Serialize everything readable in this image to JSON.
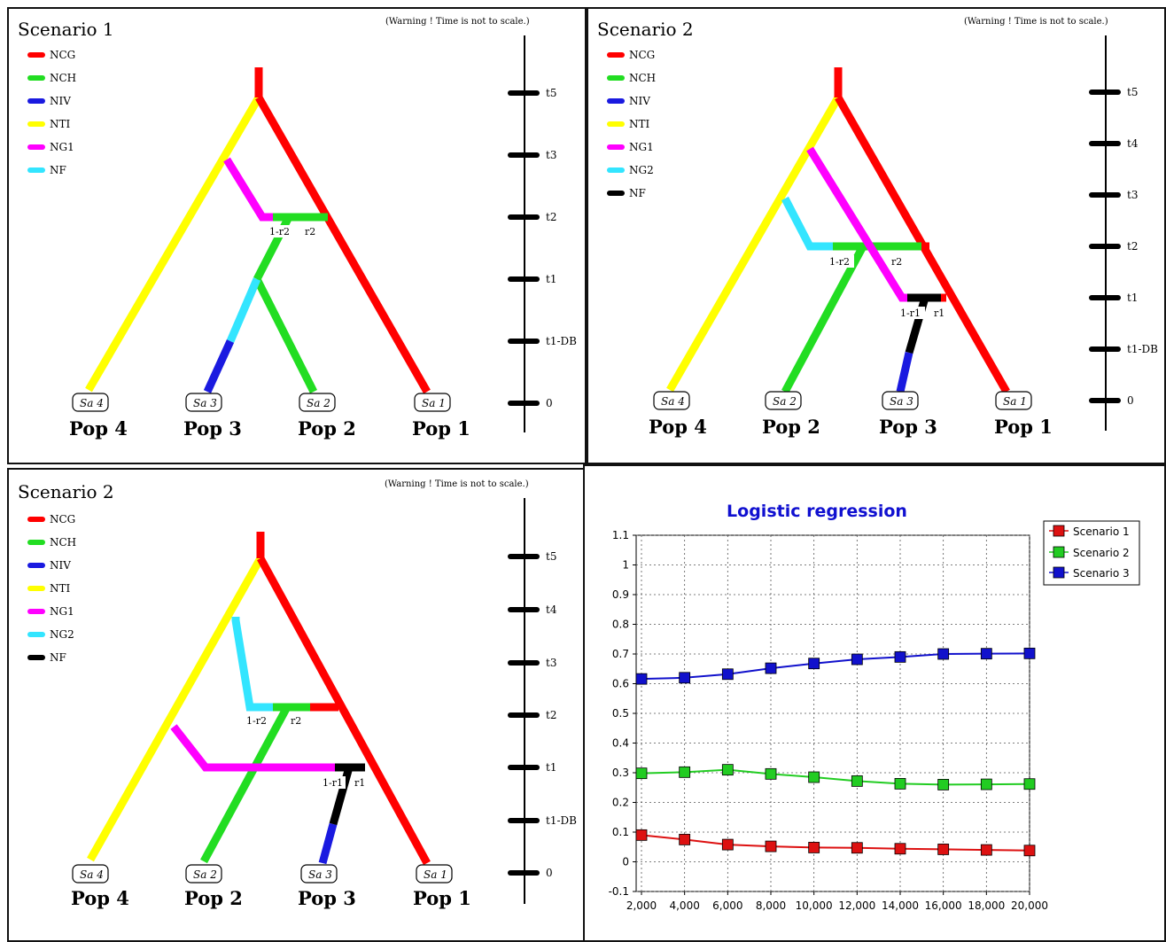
{
  "colors": {
    "NCG": "#ff0000",
    "NCH": "#22dd22",
    "NIV": "#1a1ae0",
    "NTI": "#ffff00",
    "NG1": "#ff00ff",
    "NG2": "#33e5ff",
    "NF": "#000000",
    "scenario1": "#dd1111",
    "scenario2": "#22cc22",
    "scenario3": "#1111cc"
  },
  "warning_text": "(Warning ! Time is not to scale.)",
  "panels": {
    "p1": {
      "title": "Scenario 1",
      "legend": [
        "NCG",
        "NCH",
        "NIV",
        "NTI",
        "NG1",
        "NF"
      ],
      "time_labels": [
        "t5",
        "t3",
        "t2",
        "t1",
        "t1-DB",
        "0"
      ],
      "samples": [
        "Sa 4",
        "Sa 3",
        "Sa 2",
        "Sa 1"
      ],
      "pops": [
        "Pop 4",
        "Pop 3",
        "Pop 2",
        "Pop 1"
      ],
      "admix_labels": [
        "1-r2",
        "r2"
      ]
    },
    "p2": {
      "title": "Scenario 2",
      "legend": [
        "NCG",
        "NCH",
        "NIV",
        "NTI",
        "NG1",
        "NG2",
        "NF"
      ],
      "time_labels": [
        "t5",
        "t4",
        "t3",
        "t2",
        "t1",
        "t1-DB",
        "0"
      ],
      "samples": [
        "Sa 4",
        "Sa 2",
        "Sa 3",
        "Sa 1"
      ],
      "pops": [
        "Pop 4",
        "Pop 2",
        "Pop 3",
        "Pop 1"
      ],
      "admix_labels": [
        "1-r2",
        "r2",
        "1-r1",
        "r1"
      ]
    },
    "p3": {
      "title": "Scenario 2",
      "legend": [
        "NCG",
        "NCH",
        "NIV",
        "NTI",
        "NG1",
        "NG2",
        "NF"
      ],
      "time_labels": [
        "t5",
        "t4",
        "t3",
        "t2",
        "t1",
        "t1-DB",
        "0"
      ],
      "samples": [
        "Sa 4",
        "Sa 2",
        "Sa 3",
        "Sa 1"
      ],
      "pops": [
        "Pop 4",
        "Pop 2",
        "Pop 3",
        "Pop 1"
      ],
      "admix_labels": [
        "1-r2",
        "r2",
        "1-r1",
        "r1"
      ]
    }
  },
  "chart_data": {
    "type": "line",
    "title": "Logistic regression",
    "x": [
      2000,
      4000,
      6000,
      8000,
      10000,
      12000,
      14000,
      16000,
      18000,
      20000
    ],
    "x_tick_labels": [
      "2,000",
      "4,000",
      "6,000",
      "8,000",
      "10,000",
      "12,000",
      "14,000",
      "16,000",
      "18,000",
      "20,000"
    ],
    "y_tick_labels": [
      "1.1",
      "1",
      "0.9",
      "0.8",
      "0.7",
      "0.6",
      "0.5",
      "0.4",
      "0.3",
      "0.2",
      "0.1",
      "0",
      "-0.1"
    ],
    "ylim": [
      -0.1,
      1.1
    ],
    "xlim": [
      2000,
      20000
    ],
    "grid": true,
    "legend_position": "top-right",
    "series": [
      {
        "name": "Scenario 1",
        "values": [
          0.09,
          0.075,
          0.058,
          0.052,
          0.048,
          0.047,
          0.044,
          0.042,
          0.04,
          0.038
        ]
      },
      {
        "name": "Scenario 2",
        "values": [
          0.298,
          0.302,
          0.31,
          0.296,
          0.285,
          0.272,
          0.263,
          0.26,
          0.261,
          0.262
        ]
      },
      {
        "name": "Scenario 3",
        "values": [
          0.616,
          0.62,
          0.632,
          0.652,
          0.668,
          0.682,
          0.69,
          0.7,
          0.701,
          0.702
        ]
      }
    ]
  }
}
